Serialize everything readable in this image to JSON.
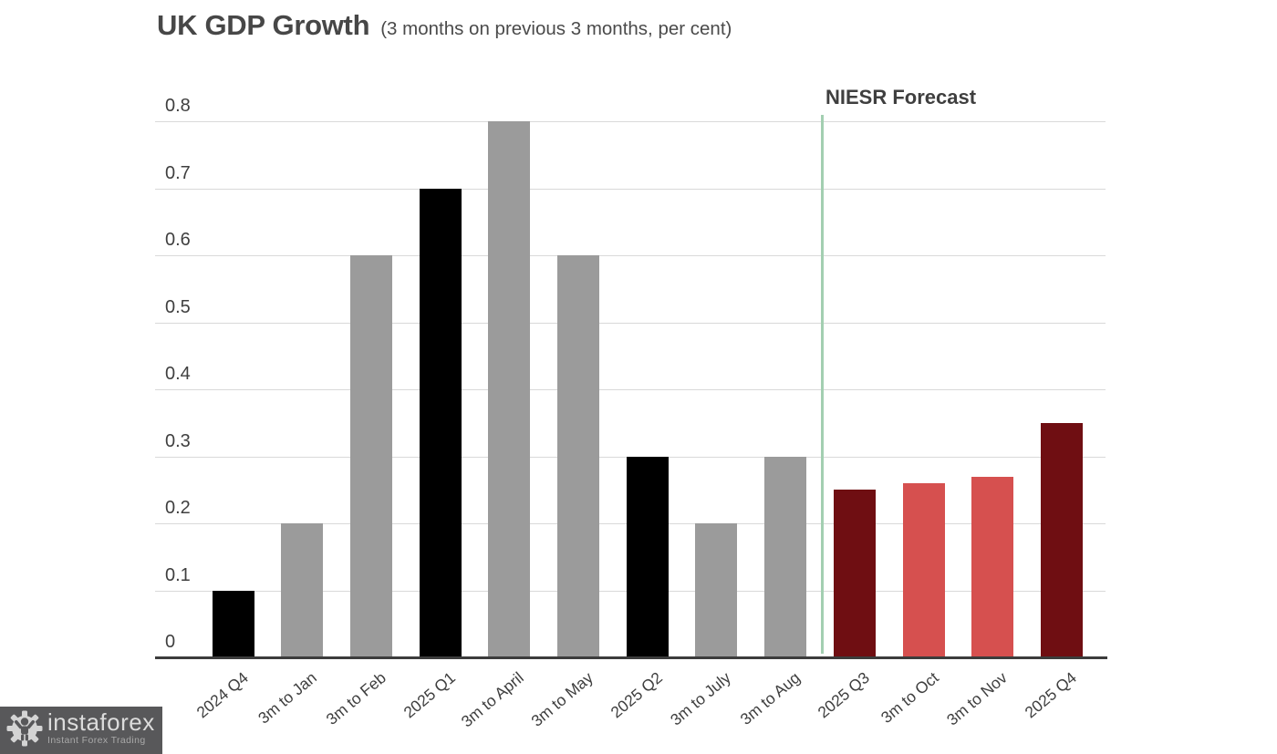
{
  "title": {
    "main": "UK GDP Growth",
    "sub": "(3 months on previous 3 months, per cent)"
  },
  "annotations": {
    "forecast_label": "NIESR Forecast"
  },
  "watermark": {
    "brand": "instaforex",
    "tagline": "Instant Forex Trading"
  },
  "colors": {
    "actual_quarter_bar": "#000000",
    "actual_month_bar": "#9b9b9b",
    "forecast_quarter_bar": "#6f0e12",
    "forecast_month_bar": "#d6504f",
    "forecast_divider_line": "#a3cfb1",
    "gridline": "#d9d9d9",
    "axis_baseline": "#3c3c3c",
    "text": "#3f3f3f",
    "logo_background": "#58585a"
  },
  "chart_data": {
    "type": "bar",
    "title": "UK GDP Growth (3 months on previous 3 months, per cent)",
    "categories": [
      "2024 Q4",
      "3m to Jan",
      "3m to Feb",
      "2025 Q1",
      "3m to April",
      "3m to May",
      "2025 Q2",
      "3m to July",
      "3m to Aug",
      "2025 Q3",
      "3m to Oct",
      "3m to Nov",
      "2025 Q4"
    ],
    "values": [
      0.1,
      0.2,
      0.6,
      0.7,
      0.8,
      0.6,
      0.3,
      0.2,
      0.3,
      0.25,
      0.26,
      0.27,
      0.35
    ],
    "roles": [
      "actual-quarter",
      "actual-month",
      "actual-month",
      "actual-quarter",
      "actual-month",
      "actual-month",
      "actual-quarter",
      "actual-month",
      "actual-month",
      "forecast-quarter",
      "forecast-month",
      "forecast-month",
      "forecast-quarter"
    ],
    "role_colors": {
      "actual-quarter": "#000000",
      "actual-month": "#9b9b9b",
      "forecast-quarter": "#6f0e12",
      "forecast-month": "#d6504f"
    },
    "xlabel": "",
    "ylabel": "",
    "ylim": [
      0,
      0.8
    ],
    "yticks": [
      0,
      0.1,
      0.2,
      0.3,
      0.4,
      0.5,
      0.6,
      0.7,
      0.8
    ],
    "ytick_labels": [
      "0",
      "0.1",
      "0.2",
      "0.3",
      "0.4",
      "0.5",
      "0.6",
      "0.7",
      "0.8"
    ],
    "grid": true,
    "legend": "none",
    "forecast_divider": {
      "label": "NIESR Forecast",
      "color": "#a3cfb1",
      "between": [
        "3m to Aug",
        "2025 Q3"
      ]
    }
  }
}
